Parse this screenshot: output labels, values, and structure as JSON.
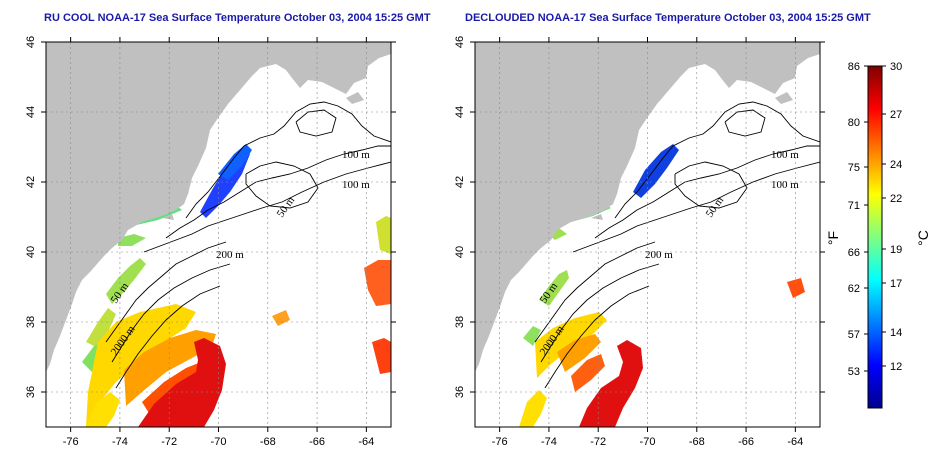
{
  "panels": [
    {
      "id": "left",
      "title": "RU COOL NOAA-17 Sea Surface Temperature October 03, 2004 15:25 GMT",
      "x_ticks": [
        "-76",
        "-74",
        "-72",
        "-70",
        "-68",
        "-66",
        "-64"
      ],
      "y_ticks": [
        "36",
        "38",
        "40",
        "42",
        "44",
        "46"
      ],
      "contour_labels": [
        "100 m",
        "100 m",
        "50 m",
        "200 m",
        "50 m",
        "2000 m"
      ]
    },
    {
      "id": "right",
      "title": "DECLOUDED NOAA-17 Sea Surface Temperature October 03, 2004 15:25 GMT",
      "x_ticks": [
        "-76",
        "-74",
        "-72",
        "-70",
        "-68",
        "-66",
        "-64"
      ],
      "y_ticks": [
        "36",
        "38",
        "40",
        "42",
        "44",
        "46"
      ],
      "contour_labels": [
        "100 m",
        "100 m",
        "50 m",
        "200 m",
        "50 m",
        "2000 m"
      ]
    }
  ],
  "map": {
    "lon_range": [
      -77,
      -63
    ],
    "lat_range": [
      35,
      46
    ],
    "land_color": "#c0c0c0",
    "ocean_color": "#ffffff"
  },
  "colorbar": {
    "fahrenheit_ticks": [
      "86",
      "80",
      "75",
      "71",
      "66",
      "62",
      "57",
      "53"
    ],
    "celsius_ticks": [
      "30",
      "27",
      "24",
      "22",
      "19",
      "17",
      "14",
      "12"
    ],
    "fahrenheit_unit": "°F",
    "celsius_unit": "°C",
    "colors": [
      "#00008f",
      "#0000ff",
      "#0080ff",
      "#00ffff",
      "#80ff80",
      "#ffff00",
      "#ff8000",
      "#ff0000",
      "#800000"
    ]
  }
}
